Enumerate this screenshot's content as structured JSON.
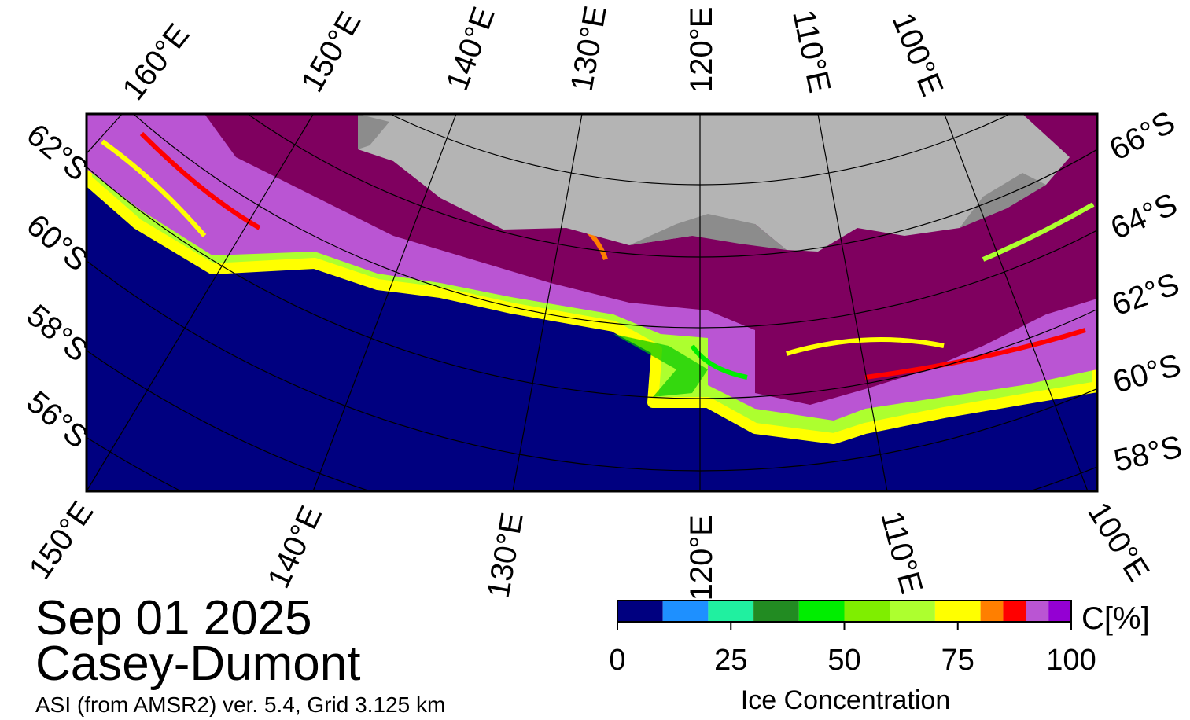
{
  "map": {
    "top_labels": [
      "160°E",
      "150°E",
      "140°E",
      "130°E",
      "120°E",
      "110°E",
      "100°E"
    ],
    "bottom_labels": [
      "150°E",
      "140°E",
      "130°E",
      "120°E",
      "110°E",
      "100°E"
    ],
    "left_labels": [
      "62°S",
      "60°S",
      "58°S",
      "56°S"
    ],
    "right_labels": [
      "66°S",
      "64°S",
      "62°S",
      "60°S",
      "58°S"
    ]
  },
  "date": "Sep 01 2025",
  "region": "Casey-Dumont",
  "source": "ASI (from AMSR2) ver. 5.4,  Grid 3.125 km",
  "colorbar": {
    "title": "Ice Concentration",
    "unit": "C[%]",
    "range": [
      0,
      100
    ],
    "ticks": [
      0,
      25,
      50,
      75,
      100
    ],
    "levels": [
      0,
      10,
      20,
      30,
      40,
      50,
      60,
      70,
      80,
      85,
      90,
      95,
      100
    ],
    "colors": [
      "#000080",
      "#1e90ff",
      "#20f0a0",
      "#228b22",
      "#00ee00",
      "#7fee00",
      "#adff2f",
      "#ffff00",
      "#ff7f00",
      "#ff0000",
      "#ba55d3",
      "#9400d3"
    ]
  }
}
